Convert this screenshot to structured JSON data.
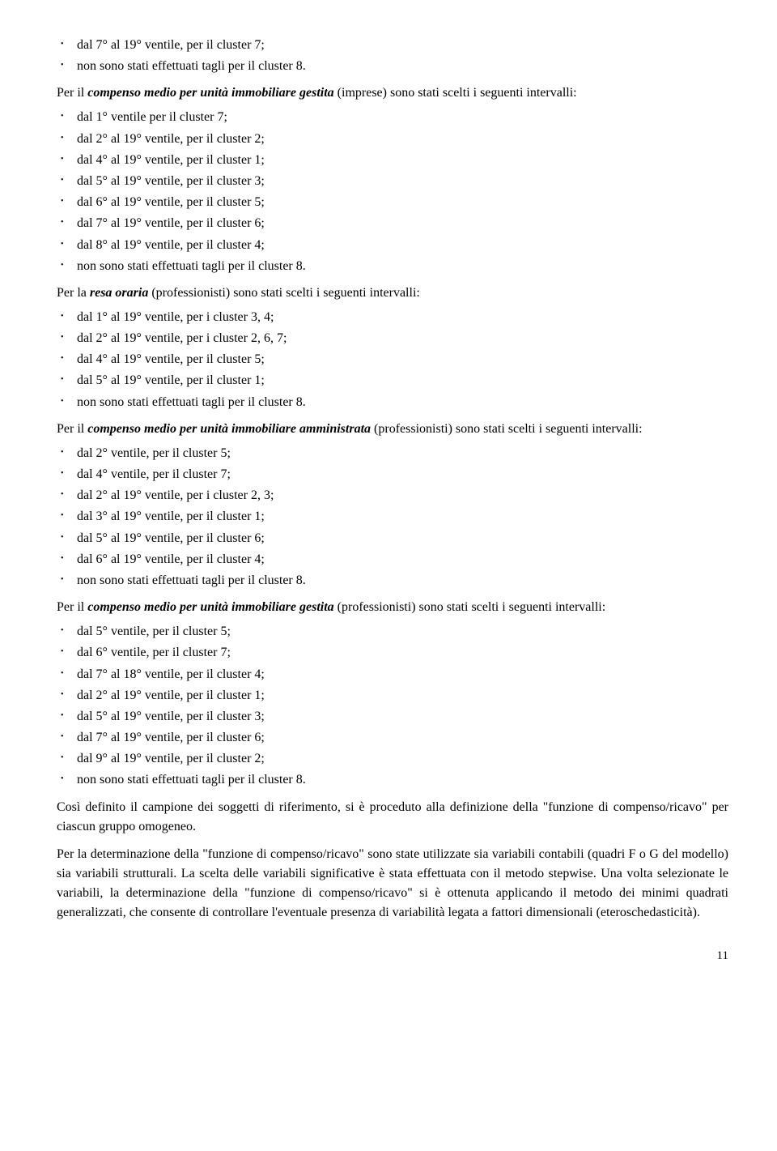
{
  "section1": {
    "items": [
      "dal 7° al 19° ventile, per il cluster 7;",
      "non sono stati effettuati tagli per il cluster 8."
    ]
  },
  "para1": {
    "prefix": "Per il ",
    "emph": "compenso medio per unità immobiliare gestita",
    "suffix": " (imprese) sono stati scelti i seguenti intervalli:"
  },
  "section2": {
    "items": [
      "dal 1° ventile per il cluster 7;",
      "dal 2° al 19° ventile, per il cluster 2;",
      "dal 4° al 19° ventile, per il cluster 1;",
      "dal 5° al 19° ventile, per il cluster 3;",
      "dal 6° al 19° ventile, per il cluster 5;",
      "dal 7° al 19° ventile, per il cluster 6;",
      "dal 8° al 19° ventile, per il cluster 4;",
      "non sono stati effettuati tagli per il cluster 8."
    ]
  },
  "para2": {
    "prefix": "Per la ",
    "emph": "resa oraria",
    "suffix": " (professionisti) sono stati scelti i seguenti intervalli:"
  },
  "section3": {
    "items": [
      "dal 1° al 19° ventile, per i cluster 3, 4;",
      "dal 2° al 19° ventile, per i cluster 2, 6, 7;",
      "dal 4° al 19° ventile, per il cluster 5;",
      "dal 5° al 19° ventile, per il cluster 1;",
      "non sono stati effettuati tagli per il cluster 8."
    ]
  },
  "para3": {
    "prefix": "Per il ",
    "emph": "compenso medio per unità immobiliare amministrata",
    "suffix": " (professionisti) sono stati scelti i seguenti intervalli:"
  },
  "section4": {
    "items": [
      "dal 2° ventile, per il cluster 5;",
      "dal 4° ventile, per il cluster 7;",
      "dal 2° al 19° ventile, per i cluster 2, 3;",
      "dal 3° al 19° ventile, per il cluster 1;",
      "dal 5° al 19° ventile, per il cluster 6;",
      "dal 6° al 19° ventile, per il cluster 4;",
      "non sono stati effettuati tagli per il cluster 8."
    ]
  },
  "para4": {
    "prefix": "Per il ",
    "emph": "compenso medio per unità immobiliare gestita",
    "suffix": " (professionisti) sono stati scelti i seguenti intervalli:"
  },
  "section5": {
    "items": [
      "dal 5° ventile, per il cluster 5;",
      "dal 6° ventile, per il cluster 7;",
      "dal 7° al 18° ventile, per il cluster 4;",
      "dal 2° al 19° ventile, per il cluster 1;",
      "dal 5° al 19° ventile, per il cluster 3;",
      "dal 7° al 19° ventile, per il cluster 6;",
      "dal 9° al 19° ventile, per il cluster 2;",
      "non sono stati effettuati tagli per il cluster 8."
    ]
  },
  "closing1": "Così definito il campione dei soggetti di riferimento, si è proceduto alla definizione della \"funzione di compenso/ricavo\" per ciascun gruppo omogeneo.",
  "closing2": "Per la determinazione della \"funzione di compenso/ricavo\" sono state utilizzate sia variabili contabili (quadri F o G del modello) sia variabili strutturali. La scelta delle variabili significative è stata effettuata con il metodo stepwise. Una volta selezionate le variabili, la determinazione della \"funzione di compenso/ricavo\" si è ottenuta applicando il metodo dei minimi quadrati generalizzati, che consente di controllare l'eventuale presenza di variabilità legata a fattori dimensionali (eteroschedasticità).",
  "pageNumber": "11"
}
